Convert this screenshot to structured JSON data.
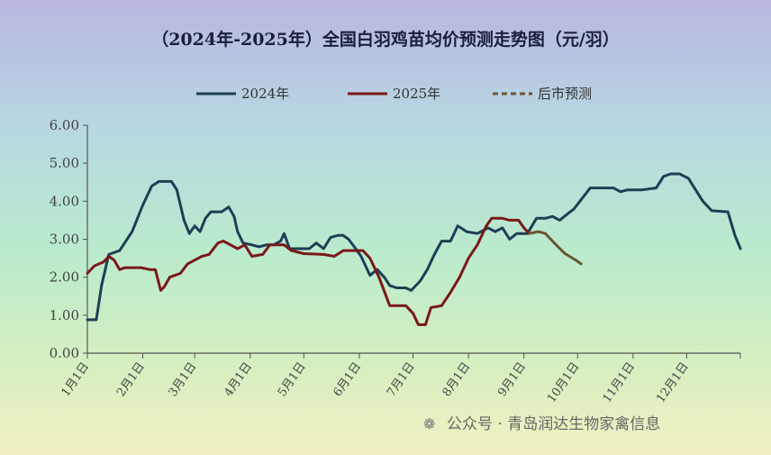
{
  "chart_data": {
    "type": "line",
    "title": "（2024年-2025年）全国白羽鸡苗均价预测走势图（元/羽）",
    "xlabel": "",
    "ylabel": "",
    "ylim": [
      0,
      6
    ],
    "yticks": [
      "0.00",
      "1.00",
      "2.00",
      "3.00",
      "4.00",
      "5.00",
      "6.00"
    ],
    "xlim": [
      0,
      365
    ],
    "xticks": [
      {
        "label": "1月1日",
        "x": 0
      },
      {
        "label": "2月1日",
        "x": 31
      },
      {
        "label": "3月1日",
        "x": 60
      },
      {
        "label": "4月1日",
        "x": 91
      },
      {
        "label": "5月1日",
        "x": 121
      },
      {
        "label": "6月1日",
        "x": 152
      },
      {
        "label": "7月1日",
        "x": 182
      },
      {
        "label": "8月1日",
        "x": 213
      },
      {
        "label": "9月1日",
        "x": 244
      },
      {
        "label": "10月1日",
        "x": 274
      },
      {
        "label": "11月1日",
        "x": 305
      },
      {
        "label": "12月1日",
        "x": 335
      }
    ],
    "legend_position": "top",
    "series": [
      {
        "name": "2024年",
        "color": "#1e3f55",
        "dash": false,
        "points": [
          [
            0,
            0.88
          ],
          [
            5,
            0.88
          ],
          [
            8,
            1.8
          ],
          [
            12,
            2.6
          ],
          [
            18,
            2.7
          ],
          [
            25,
            3.2
          ],
          [
            31,
            3.9
          ],
          [
            36,
            4.4
          ],
          [
            40,
            4.52
          ],
          [
            47,
            4.52
          ],
          [
            50,
            4.3
          ],
          [
            54,
            3.5
          ],
          [
            57,
            3.15
          ],
          [
            60,
            3.35
          ],
          [
            63,
            3.2
          ],
          [
            66,
            3.55
          ],
          [
            69,
            3.72
          ],
          [
            75,
            3.72
          ],
          [
            79,
            3.85
          ],
          [
            82,
            3.6
          ],
          [
            84,
            3.2
          ],
          [
            87,
            2.9
          ],
          [
            92,
            2.85
          ],
          [
            96,
            2.8
          ],
          [
            100,
            2.85
          ],
          [
            104,
            2.85
          ],
          [
            108,
            2.95
          ],
          [
            110,
            3.15
          ],
          [
            113,
            2.75
          ],
          [
            118,
            2.75
          ],
          [
            124,
            2.75
          ],
          [
            128,
            2.9
          ],
          [
            132,
            2.75
          ],
          [
            136,
            3.05
          ],
          [
            140,
            3.1
          ],
          [
            143,
            3.1
          ],
          [
            146,
            3.0
          ],
          [
            150,
            2.75
          ],
          [
            153,
            2.55
          ],
          [
            158,
            2.05
          ],
          [
            162,
            2.2
          ],
          [
            166,
            2.0
          ],
          [
            169,
            1.78
          ],
          [
            173,
            1.72
          ],
          [
            178,
            1.72
          ],
          [
            181,
            1.65
          ],
          [
            186,
            1.9
          ],
          [
            190,
            2.2
          ],
          [
            194,
            2.6
          ],
          [
            198,
            2.95
          ],
          [
            203,
            2.95
          ],
          [
            207,
            3.35
          ],
          [
            212,
            3.2
          ],
          [
            218,
            3.15
          ],
          [
            224,
            3.3
          ],
          [
            228,
            3.2
          ],
          [
            232,
            3.3
          ],
          [
            236,
            3.0
          ],
          [
            240,
            3.15
          ],
          [
            246,
            3.15
          ],
          [
            251,
            3.55
          ],
          [
            256,
            3.55
          ],
          [
            260,
            3.6
          ],
          [
            264,
            3.5
          ],
          [
            268,
            3.65
          ],
          [
            272,
            3.8
          ],
          [
            277,
            4.1
          ],
          [
            281,
            4.35
          ],
          [
            288,
            4.35
          ],
          [
            294,
            4.35
          ],
          [
            298,
            4.25
          ],
          [
            302,
            4.3
          ],
          [
            310,
            4.3
          ],
          [
            318,
            4.35
          ],
          [
            322,
            4.65
          ],
          [
            326,
            4.72
          ],
          [
            331,
            4.72
          ],
          [
            336,
            4.6
          ],
          [
            340,
            4.3
          ],
          [
            344,
            4.0
          ],
          [
            349,
            3.75
          ],
          [
            358,
            3.72
          ],
          [
            362,
            3.1
          ],
          [
            365,
            2.75
          ]
        ]
      },
      {
        "name": "2025年",
        "color": "#7b1818",
        "dash": false,
        "points": [
          [
            0,
            2.1
          ],
          [
            4,
            2.3
          ],
          [
            9,
            2.4
          ],
          [
            12,
            2.55
          ],
          [
            15,
            2.45
          ],
          [
            18,
            2.2
          ],
          [
            21,
            2.25
          ],
          [
            30,
            2.25
          ],
          [
            35,
            2.2
          ],
          [
            38,
            2.2
          ],
          [
            41,
            1.65
          ],
          [
            43,
            1.75
          ],
          [
            46,
            2.0
          ],
          [
            52,
            2.1
          ],
          [
            56,
            2.35
          ],
          [
            60,
            2.45
          ],
          [
            64,
            2.55
          ],
          [
            68,
            2.6
          ],
          [
            73,
            2.9
          ],
          [
            76,
            2.95
          ],
          [
            80,
            2.85
          ],
          [
            84,
            2.75
          ],
          [
            88,
            2.85
          ],
          [
            92,
            2.55
          ],
          [
            98,
            2.6
          ],
          [
            102,
            2.85
          ],
          [
            110,
            2.85
          ],
          [
            114,
            2.7
          ],
          [
            121,
            2.62
          ],
          [
            132,
            2.6
          ],
          [
            138,
            2.55
          ],
          [
            143,
            2.7
          ],
          [
            154,
            2.7
          ],
          [
            158,
            2.5
          ],
          [
            163,
            2.0
          ],
          [
            169,
            1.25
          ],
          [
            178,
            1.25
          ],
          [
            182,
            1.05
          ],
          [
            185,
            0.75
          ],
          [
            189,
            0.75
          ],
          [
            192,
            1.2
          ],
          [
            198,
            1.25
          ],
          [
            203,
            1.6
          ],
          [
            208,
            2.0
          ],
          [
            213,
            2.5
          ],
          [
            218,
            2.85
          ],
          [
            223,
            3.35
          ],
          [
            226,
            3.55
          ],
          [
            232,
            3.55
          ],
          [
            236,
            3.5
          ],
          [
            241,
            3.5
          ],
          [
            244,
            3.3
          ],
          [
            247,
            3.15
          ]
        ]
      },
      {
        "name": "后市预测",
        "color": "#6b5530",
        "dash": true,
        "points": [
          [
            247,
            3.15
          ],
          [
            252,
            3.2
          ],
          [
            256,
            3.15
          ],
          [
            262,
            2.85
          ],
          [
            267,
            2.62
          ],
          [
            273,
            2.45
          ],
          [
            276,
            2.35
          ]
        ]
      }
    ]
  },
  "watermark": {
    "text": "公众号 · 青岛润达生物家禽信息"
  },
  "colors": {
    "axis": "#555555"
  }
}
